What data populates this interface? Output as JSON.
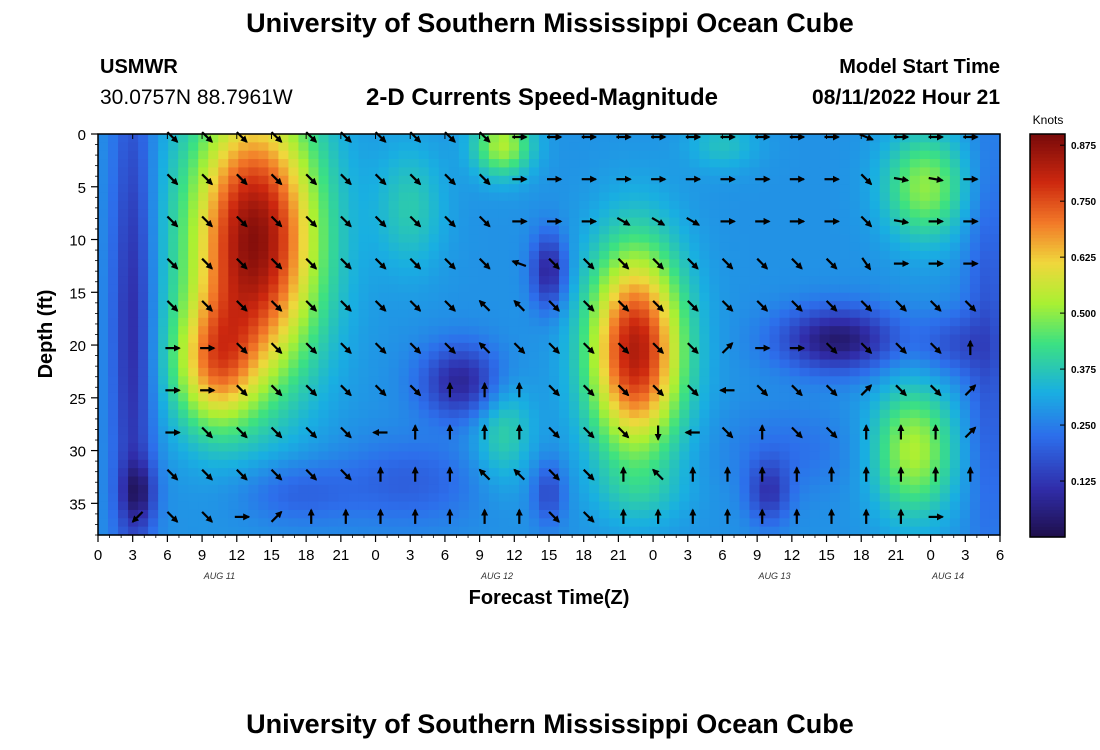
{
  "header": {
    "title": "University of Southern Mississippi Ocean Cube",
    "station": "USMWR",
    "coords": "30.0757N  88.7961W",
    "subtitle": "2-D Currents Speed-Magnitude",
    "model_start_label": "Model Start Time",
    "model_start_value": "08/11/2022 Hour 21"
  },
  "footer": {
    "title": "University of Southern Mississippi Ocean Cube"
  },
  "chart_data": {
    "type": "heatmap",
    "title": "2-D Currents Speed-Magnitude",
    "xlabel": "Forecast Time(Z)",
    "ylabel": "Depth (ft)",
    "x_hour_range": [
      0,
      78
    ],
    "y_depth_range": [
      0,
      38
    ],
    "y_inverted": true,
    "x_tick_hours": [
      0,
      3,
      6,
      9,
      12,
      15,
      18,
      21,
      24,
      27,
      30,
      33,
      36,
      39,
      42,
      45,
      48,
      51,
      54,
      57,
      60,
      63,
      66,
      69,
      72,
      75,
      78
    ],
    "x_tick_labels": [
      "0",
      "3",
      "6",
      "9",
      "12",
      "15",
      "18",
      "21",
      "0",
      "3",
      "6",
      "9",
      "12",
      "15",
      "18",
      "21",
      "0",
      "3",
      "6",
      "9",
      "12",
      "15",
      "18",
      "21",
      "0",
      "3",
      "6"
    ],
    "y_ticks": [
      0,
      5,
      10,
      15,
      20,
      25,
      30,
      35
    ],
    "day_labels": [
      {
        "text": "AUG 11",
        "hour": 10.5
      },
      {
        "text": "AUG 12",
        "hour": 34.5
      },
      {
        "text": "AUG 13",
        "hour": 58.5
      },
      {
        "text": "AUG 14",
        "hour": 73.5
      }
    ],
    "colorbar": {
      "label": "Knots",
      "range": [
        0,
        0.9
      ],
      "ticks": [
        0.125,
        0.25,
        0.375,
        0.5,
        0.625,
        0.75,
        0.875
      ],
      "tick_labels": [
        "0.125",
        "0.250",
        "0.375",
        "0.500",
        "0.625",
        "0.750",
        "0.875"
      ]
    },
    "speed_field_features": [
      {
        "hour": 13.5,
        "depth": 10,
        "sigma_hour": 5.5,
        "sigma_depth": 13,
        "speed": 0.6
      },
      {
        "hour": 10,
        "depth": 22,
        "sigma_hour": 3.5,
        "sigma_depth": 6,
        "speed": 0.3
      },
      {
        "hour": 3,
        "depth": 18,
        "sigma_hour": 1.8,
        "sigma_depth": 25,
        "speed": -0.18
      },
      {
        "hour": 3.5,
        "depth": 34,
        "sigma_hour": 1.5,
        "sigma_depth": 3,
        "speed": -0.15
      },
      {
        "hour": 31.5,
        "depth": 23.5,
        "sigma_hour": 3.5,
        "sigma_depth": 3.5,
        "speed": -0.2
      },
      {
        "hour": 27,
        "depth": 33,
        "sigma_hour": 6,
        "sigma_depth": 4,
        "speed": -0.08
      },
      {
        "hour": 27,
        "depth": 7,
        "sigma_hour": 3,
        "sigma_depth": 6,
        "speed": 0.1
      },
      {
        "hour": 35,
        "depth": 1,
        "sigma_hour": 2.5,
        "sigma_depth": 3,
        "speed": 0.25
      },
      {
        "hour": 35,
        "depth": 28,
        "sigma_hour": 2.5,
        "sigma_depth": 5,
        "speed": 0.12
      },
      {
        "hour": 39,
        "depth": 13,
        "sigma_hour": 1.5,
        "sigma_depth": 3.5,
        "speed": -0.2
      },
      {
        "hour": 39,
        "depth": 34,
        "sigma_hour": 1.4,
        "sigma_depth": 3,
        "speed": -0.12
      },
      {
        "hour": 46.5,
        "depth": 20.5,
        "sigma_hour": 4,
        "sigma_depth": 9.5,
        "speed": 0.55
      },
      {
        "hour": 47,
        "depth": 34,
        "sigma_hour": 4,
        "sigma_depth": 3,
        "speed": 0.05
      },
      {
        "hour": 54,
        "depth": 1,
        "sigma_hour": 3,
        "sigma_depth": 2.5,
        "speed": 0.08
      },
      {
        "hour": 58,
        "depth": 34,
        "sigma_hour": 1.8,
        "sigma_depth": 3,
        "speed": -0.15
      },
      {
        "hour": 64,
        "depth": 19.5,
        "sigma_hour": 5,
        "sigma_depth": 3,
        "speed": -0.24
      },
      {
        "hour": 60,
        "depth": 30,
        "sigma_hour": 6,
        "sigma_depth": 4,
        "speed": -0.05
      },
      {
        "hour": 71.5,
        "depth": 5,
        "sigma_hour": 3.5,
        "sigma_depth": 5,
        "speed": 0.22
      },
      {
        "hour": 70.5,
        "depth": 30,
        "sigma_hour": 3.5,
        "sigma_depth": 6,
        "speed": 0.25
      },
      {
        "hour": 74,
        "depth": 20,
        "sigma_hour": 3,
        "sigma_depth": 3,
        "speed": -0.1
      },
      {
        "hour": 77,
        "depth": 20,
        "sigma_hour": 2,
        "sigma_depth": 20,
        "speed": -0.1
      },
      {
        "hour": 17,
        "depth": 34,
        "sigma_hour": 5,
        "sigma_depth": 3,
        "speed": -0.08
      }
    ],
    "vector_hours": [
      3,
      6,
      9,
      12,
      15,
      18,
      21,
      24,
      27,
      30,
      33,
      36,
      39,
      42,
      45,
      48,
      51,
      54,
      57,
      60,
      63,
      66,
      69,
      72,
      75
    ],
    "vector_depths": [
      0,
      4,
      8,
      12,
      16,
      20,
      24,
      28,
      32,
      36
    ],
    "vector_direction_deg": [
      [
        null,
        135,
        135,
        135,
        135,
        135,
        135,
        135,
        135,
        135,
        135,
        90,
        90,
        90,
        90,
        90,
        90,
        90,
        90,
        90,
        90,
        112,
        90,
        90,
        90
      ],
      [
        null,
        135,
        135,
        135,
        135,
        135,
        135,
        135,
        135,
        135,
        135,
        90,
        90,
        90,
        90,
        90,
        90,
        90,
        90,
        90,
        90,
        135,
        100,
        100,
        90
      ],
      [
        null,
        135,
        135,
        135,
        135,
        135,
        135,
        135,
        135,
        135,
        135,
        90,
        90,
        90,
        120,
        120,
        120,
        90,
        90,
        90,
        90,
        135,
        100,
        90,
        90
      ],
      [
        null,
        135,
        135,
        135,
        135,
        135,
        135,
        135,
        135,
        135,
        135,
        290,
        135,
        135,
        135,
        135,
        135,
        135,
        135,
        135,
        135,
        145,
        90,
        90,
        90
      ],
      [
        null,
        135,
        135,
        135,
        135,
        135,
        135,
        135,
        135,
        135,
        315,
        315,
        135,
        135,
        135,
        135,
        135,
        135,
        135,
        135,
        135,
        135,
        135,
        135,
        135
      ],
      [
        null,
        90,
        90,
        135,
        135,
        135,
        135,
        135,
        135,
        135,
        315,
        135,
        135,
        135,
        135,
        135,
        135,
        45,
        90,
        90,
        135,
        135,
        135,
        135,
        0
      ],
      [
        null,
        90,
        90,
        135,
        135,
        135,
        135,
        135,
        135,
        0,
        0,
        0,
        135,
        135,
        135,
        135,
        135,
        270,
        135,
        135,
        135,
        45,
        135,
        135,
        45
      ],
      [
        null,
        90,
        135,
        135,
        135,
        135,
        135,
        270,
        0,
        0,
        0,
        0,
        135,
        135,
        135,
        180,
        270,
        135,
        0,
        135,
        135,
        0,
        0,
        0,
        45
      ],
      [
        null,
        135,
        135,
        135,
        135,
        135,
        135,
        0,
        0,
        0,
        315,
        315,
        135,
        135,
        0,
        315,
        0,
        0,
        0,
        0,
        0,
        0,
        0,
        0,
        0
      ],
      [
        225,
        135,
        135,
        90,
        45,
        0,
        0,
        0,
        0,
        0,
        0,
        0,
        135,
        135,
        0,
        0,
        0,
        0,
        0,
        0,
        0,
        0,
        0,
        90,
        null
      ]
    ]
  }
}
